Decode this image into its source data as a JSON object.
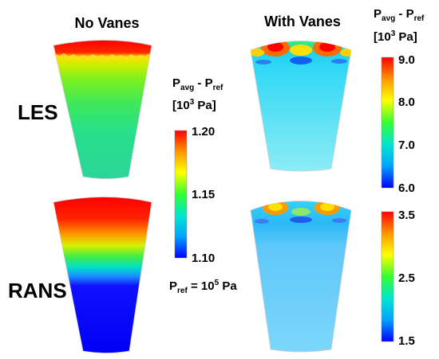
{
  "columns": {
    "left": "No Vanes",
    "right": "With Vanes"
  },
  "rows": {
    "top": "LES",
    "bottom": "RANS"
  },
  "colorbar_les_novanes": {
    "title_main": "P",
    "title_sub1": "avg",
    "title_mid": " - P",
    "title_sub2": "ref",
    "units_open": "[10",
    "units_exp": "3",
    "units_close": " Pa]",
    "ticks": [
      "1.20",
      "1.15",
      "1.10"
    ]
  },
  "colorbar_les_vanes": {
    "title_main": "P",
    "title_sub1": "avg",
    "title_mid": " - P",
    "title_sub2": "ref",
    "units_open": "[10",
    "units_exp": "3",
    "units_close": " Pa]",
    "ticks": [
      "9.0",
      "8.0",
      "7.0",
      "6.0"
    ]
  },
  "colorbar_rans_vanes": {
    "ticks": [
      "3.5",
      "2.5",
      "1.5"
    ]
  },
  "pref_note": {
    "main": "P",
    "sub": "ref",
    "mid": " = 10",
    "exp": "5",
    "end": " Pa"
  },
  "colormap": [
    "#ff0000",
    "#ffa500",
    "#ffff00",
    "#00ff00",
    "#00e5e5",
    "#00bfff",
    "#0000ff"
  ]
}
